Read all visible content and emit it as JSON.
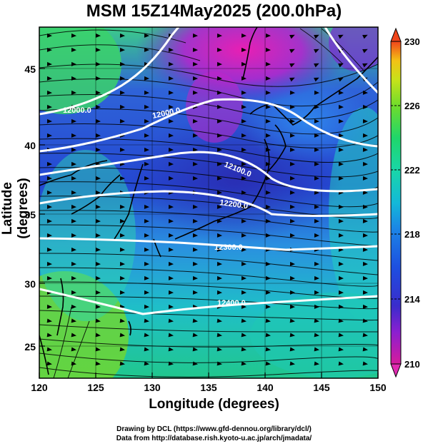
{
  "title": "MSM 15Z14May2025 (200.0hPa)",
  "xlabel": "Longitude (degrees)",
  "ylabel": "Latitude  (degrees)",
  "x_ticks": [
    "120",
    "125",
    "130",
    "135",
    "140",
    "145",
    "150"
  ],
  "y_ticks": [
    "25",
    "30",
    "35",
    "40",
    "45"
  ],
  "colorbar_ticks": [
    "230",
    "226",
    "222",
    "218",
    "214",
    "210"
  ],
  "contour_labels": [
    "12000.0",
    "12000.0",
    "12100.0",
    "12200.0",
    "12300.0",
    "12400.0"
  ],
  "credits": {
    "line1": "Drawing by DCL (https://www.gfd-dennou.org/library/dcl/)",
    "line2": "Data from http://database.rish.kyoto-u.ac.jp/arch/jmadata/"
  },
  "map": {
    "lon_range": [
      120,
      150
    ],
    "lat_range": [
      22.7,
      48.2
    ],
    "temperature_range_K": [
      210,
      230
    ],
    "contour_interval_m": 100,
    "fields": [
      "temperature (shaded)",
      "geopotential height (contours)",
      "wind (streamlines)"
    ]
  }
}
